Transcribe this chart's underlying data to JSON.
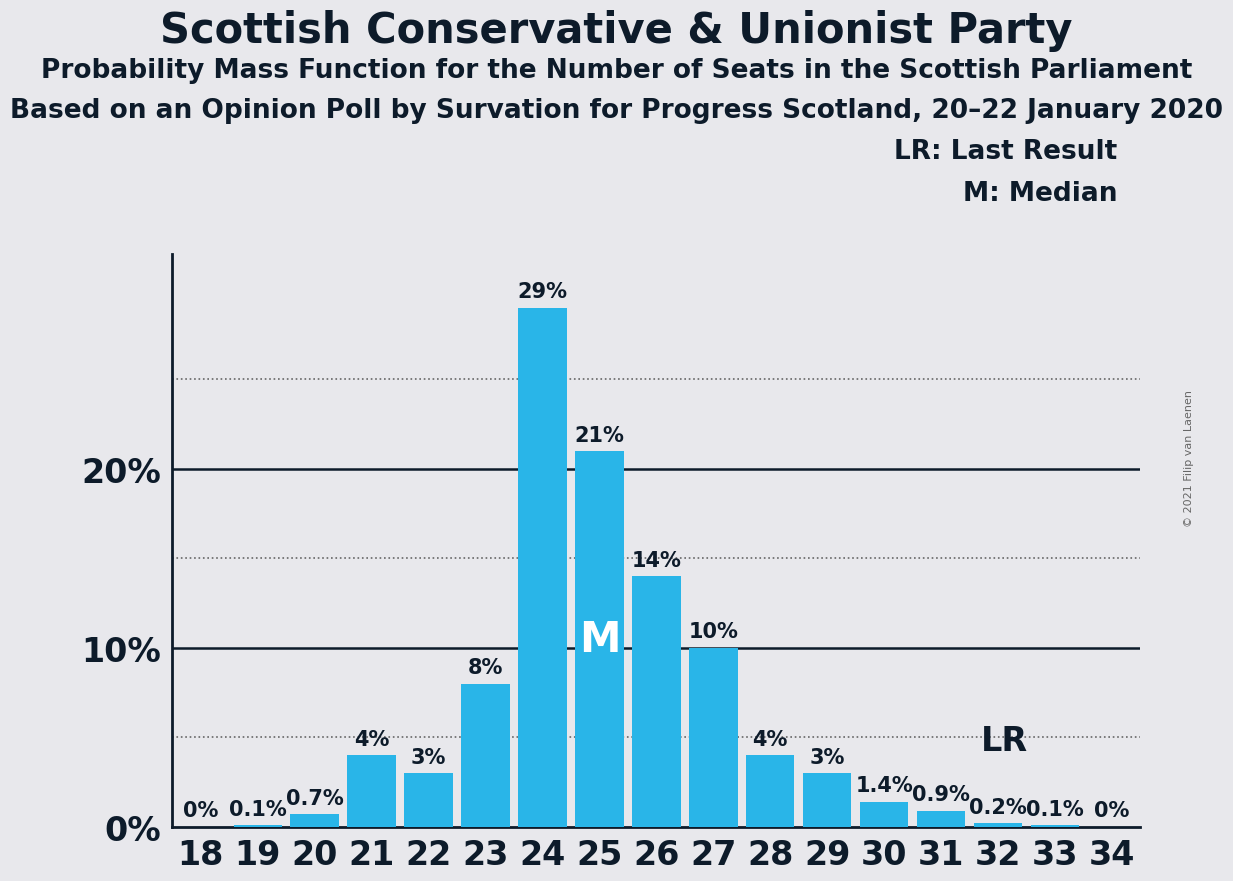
{
  "title": "Scottish Conservative & Unionist Party",
  "subtitle1": "Probability Mass Function for the Number of Seats in the Scottish Parliament",
  "subtitle2": "Based on an Opinion Poll by Survation for Progress Scotland, 20–22 January 2020",
  "copyright": "© 2021 Filip van Laenen",
  "seats": [
    18,
    19,
    20,
    21,
    22,
    23,
    24,
    25,
    26,
    27,
    28,
    29,
    30,
    31,
    32,
    33,
    34
  ],
  "probabilities": [
    0.0,
    0.1,
    0.7,
    4.0,
    3.0,
    8.0,
    29.0,
    21.0,
    14.0,
    10.0,
    4.0,
    3.0,
    1.4,
    0.9,
    0.2,
    0.1,
    0.0
  ],
  "labels": [
    "0%",
    "0.1%",
    "0.7%",
    "4%",
    "3%",
    "8%",
    "29%",
    "21%",
    "14%",
    "10%",
    "4%",
    "3%",
    "1.4%",
    "0.9%",
    "0.2%",
    "0.1%",
    "0%"
  ],
  "bar_color": "#29b5e8",
  "background_color": "#e8e8ec",
  "median_seat": 25,
  "lr_seat": 31,
  "yticks": [
    0,
    10,
    20
  ],
  "ytick_labels": [
    "0%",
    "10%",
    "20%"
  ],
  "dotted_lines": [
    5,
    15,
    25
  ],
  "ylim": [
    0,
    32
  ],
  "xlim": [
    17.5,
    34.5
  ],
  "title_fontsize": 30,
  "subtitle_fontsize": 19,
  "legend_fontsize": 19,
  "bar_label_fontsize": 15,
  "ytick_fontsize": 24,
  "xtick_fontsize": 24,
  "text_color": "#0d1b2a",
  "median_label_fontsize": 30,
  "lr_label_fontsize": 24
}
